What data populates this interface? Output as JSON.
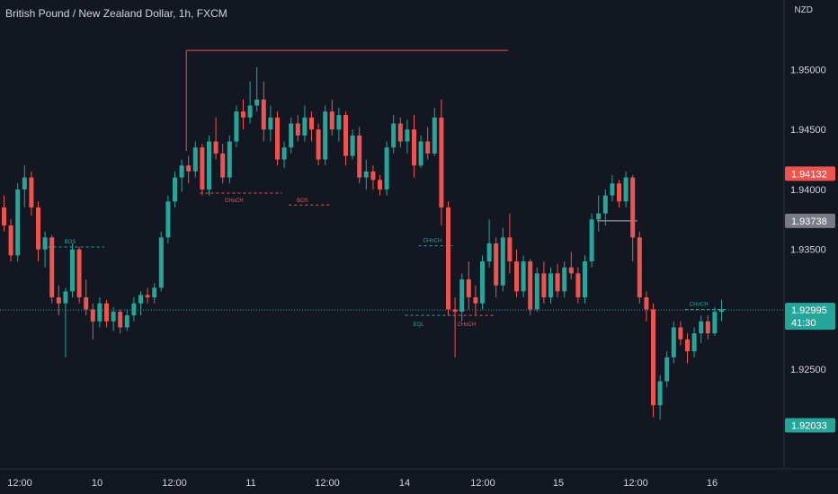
{
  "header": {
    "symbol_title": "British Pound / New Zealand Dollar, 1h, FXCM",
    "currency": "NZD"
  },
  "colors": {
    "background": "#131722",
    "up": "#26a69a",
    "down": "#ef5350",
    "axis_text": "#d1d4dc",
    "loss_zone": "#5c1f26",
    "profit_zone": "#0f3d36"
  },
  "chart_data": {
    "type": "candlestick",
    "title": "British Pound / New Zealand Dollar, 1h, FXCM",
    "y_axis": {
      "ticks": [
        "1.95000",
        "1.94500",
        "1.94000",
        "1.93500",
        "1.92500"
      ],
      "tick_values": [
        1.95,
        1.945,
        1.94,
        1.935,
        1.925
      ],
      "ylim": [
        1.9167,
        1.9558
      ]
    },
    "x_axis": {
      "ticks": [
        "12:00",
        "10",
        "12:00",
        "11",
        "12:00",
        "14",
        "12:00",
        "15",
        "12:00",
        "16"
      ]
    },
    "price_labels": [
      {
        "value": "1.94132",
        "price": 1.94132,
        "color": "#ef5350"
      },
      {
        "value": "1.93738",
        "price": 1.93738,
        "color": "#787b86"
      },
      {
        "value": "1.92995",
        "price": 1.92995,
        "color": "#26a69a",
        "countdown": "41:30"
      },
      {
        "value": "1.92033",
        "price": 1.92033,
        "color": "#26a69a"
      }
    ],
    "current_price": 1.92995,
    "annotations": [
      {
        "text": "BOS",
        "price": 1.9352,
        "color": "#26a69a"
      },
      {
        "text": "CHoCH",
        "price": 1.9397,
        "color": "#ef5350"
      },
      {
        "text": "BOS",
        "price": 1.9397,
        "color": "#ef5350"
      },
      {
        "text": "CHoCH",
        "price": 1.9353,
        "color": "#26a69a"
      },
      {
        "text": "EQL",
        "price": 1.9295,
        "color": "#26a69a"
      },
      {
        "text": "CHoCH",
        "price": 1.9295,
        "color": "#ef5350"
      },
      {
        "text": "CHoCH",
        "price": 1.93,
        "color": "#26a69a"
      }
    ],
    "resistance_level": 1.9516,
    "position": {
      "entry": 1.93738,
      "stop_loss": 1.94132,
      "take_profit": 1.92033
    },
    "candles": [
      [
        1.9385,
        1.9395,
        1.9365,
        1.937
      ],
      [
        1.937,
        1.9375,
        1.934,
        1.9345
      ],
      [
        1.9345,
        1.9405,
        1.934,
        1.94
      ],
      [
        1.94,
        1.942,
        1.9385,
        1.941
      ],
      [
        1.941,
        1.9415,
        1.9378,
        1.9385
      ],
      [
        1.9385,
        1.939,
        1.934,
        1.935
      ],
      [
        1.935,
        1.9365,
        1.9335,
        1.936
      ],
      [
        1.936,
        1.9362,
        1.9305,
        1.931
      ],
      [
        1.931,
        1.932,
        1.9295,
        1.9305
      ],
      [
        1.9305,
        1.9318,
        1.926,
        1.9315
      ],
      [
        1.9315,
        1.9355,
        1.931,
        1.935
      ],
      [
        1.935,
        1.9352,
        1.9305,
        1.931
      ],
      [
        1.931,
        1.9325,
        1.9295,
        1.93
      ],
      [
        1.93,
        1.9305,
        1.9275,
        1.929
      ],
      [
        1.929,
        1.931,
        1.9285,
        1.9305
      ],
      [
        1.9305,
        1.9308,
        1.9285,
        1.929
      ],
      [
        1.929,
        1.9302,
        1.9282,
        1.9298
      ],
      [
        1.9298,
        1.93,
        1.928,
        1.9285
      ],
      [
        1.9285,
        1.93,
        1.9282,
        1.9295
      ],
      [
        1.9295,
        1.931,
        1.929,
        1.9305
      ],
      [
        1.9305,
        1.9315,
        1.9295,
        1.9312
      ],
      [
        1.9312,
        1.9318,
        1.9305,
        1.931
      ],
      [
        1.931,
        1.9322,
        1.9305,
        1.9318
      ],
      [
        1.9318,
        1.9365,
        1.9315,
        1.936
      ],
      [
        1.936,
        1.9395,
        1.9355,
        1.939
      ],
      [
        1.939,
        1.9415,
        1.9385,
        1.941
      ],
      [
        1.941,
        1.9425,
        1.9398,
        1.942
      ],
      [
        1.942,
        1.9428,
        1.9405,
        1.9415
      ],
      [
        1.9415,
        1.944,
        1.941,
        1.9435
      ],
      [
        1.9435,
        1.9438,
        1.9395,
        1.94
      ],
      [
        1.94,
        1.9445,
        1.9395,
        1.944
      ],
      [
        1.944,
        1.946,
        1.9425,
        1.943
      ],
      [
        1.943,
        1.9438,
        1.9405,
        1.941
      ],
      [
        1.941,
        1.9445,
        1.9405,
        1.944
      ],
      [
        1.944,
        1.947,
        1.9435,
        1.9465
      ],
      [
        1.9465,
        1.9475,
        1.945,
        1.946
      ],
      [
        1.946,
        1.949,
        1.9455,
        1.947
      ],
      [
        1.947,
        1.9502,
        1.9465,
        1.9475
      ],
      [
        1.9475,
        1.949,
        1.944,
        1.945
      ],
      [
        1.945,
        1.947,
        1.944,
        1.946
      ],
      [
        1.946,
        1.9465,
        1.942,
        1.9425
      ],
      [
        1.9425,
        1.944,
        1.9418,
        1.9435
      ],
      [
        1.9435,
        1.946,
        1.943,
        1.9455
      ],
      [
        1.9455,
        1.9462,
        1.944,
        1.9445
      ],
      [
        1.9445,
        1.947,
        1.944,
        1.946
      ],
      [
        1.946,
        1.9465,
        1.944,
        1.945
      ],
      [
        1.945,
        1.9455,
        1.942,
        1.9425
      ],
      [
        1.9425,
        1.947,
        1.942,
        1.9465
      ],
      [
        1.9465,
        1.9475,
        1.9445,
        1.945
      ],
      [
        1.945,
        1.9468,
        1.944,
        1.9462
      ],
      [
        1.9462,
        1.9465,
        1.942,
        1.9428
      ],
      [
        1.9428,
        1.945,
        1.9425,
        1.9445
      ],
      [
        1.9445,
        1.9452,
        1.9405,
        1.941
      ],
      [
        1.941,
        1.9425,
        1.94,
        1.9415
      ],
      [
        1.9415,
        1.942,
        1.94,
        1.9408
      ],
      [
        1.9408,
        1.9412,
        1.9395,
        1.94
      ],
      [
        1.94,
        1.944,
        1.9395,
        1.9435
      ],
      [
        1.9435,
        1.9462,
        1.943,
        1.9455
      ],
      [
        1.9455,
        1.946,
        1.9435,
        1.944
      ],
      [
        1.944,
        1.9458,
        1.943,
        1.945
      ],
      [
        1.945,
        1.9462,
        1.941,
        1.942
      ],
      [
        1.942,
        1.9445,
        1.9418,
        1.944
      ],
      [
        1.944,
        1.9452,
        1.9425,
        1.943
      ],
      [
        1.943,
        1.9468,
        1.9428,
        1.946
      ],
      [
        1.946,
        1.9475,
        1.937,
        1.9385
      ],
      [
        1.9385,
        1.939,
        1.9295,
        1.93
      ],
      [
        1.93,
        1.931,
        1.926,
        1.9298
      ],
      [
        1.9298,
        1.933,
        1.929,
        1.9325
      ],
      [
        1.9325,
        1.934,
        1.93,
        1.931
      ],
      [
        1.931,
        1.932,
        1.9295,
        1.9305
      ],
      [
        1.9305,
        1.9345,
        1.93,
        1.934
      ],
      [
        1.934,
        1.9375,
        1.9335,
        1.9355
      ],
      [
        1.9355,
        1.936,
        1.931,
        1.932
      ],
      [
        1.932,
        1.9368,
        1.9315,
        1.936
      ],
      [
        1.936,
        1.938,
        1.933,
        1.934
      ],
      [
        1.934,
        1.935,
        1.931,
        1.9315
      ],
      [
        1.9315,
        1.9345,
        1.931,
        1.934
      ],
      [
        1.934,
        1.9342,
        1.9295,
        1.93
      ],
      [
        1.93,
        1.9335,
        1.9298,
        1.933
      ],
      [
        1.933,
        1.934,
        1.9305,
        1.931
      ],
      [
        1.931,
        1.9335,
        1.9305,
        1.933
      ],
      [
        1.933,
        1.9338,
        1.931,
        1.9315
      ],
      [
        1.9315,
        1.934,
        1.931,
        1.9335
      ],
      [
        1.9335,
        1.9348,
        1.9325,
        1.933
      ],
      [
        1.933,
        1.9335,
        1.9305,
        1.931
      ],
      [
        1.931,
        1.9345,
        1.9305,
        1.934
      ],
      [
        1.934,
        1.938,
        1.9335,
        1.9375
      ],
      [
        1.9375,
        1.9395,
        1.9365,
        1.938
      ],
      [
        1.938,
        1.94,
        1.937,
        1.9395
      ],
      [
        1.9395,
        1.9412,
        1.939,
        1.9405
      ],
      [
        1.9405,
        1.9408,
        1.9385,
        1.939
      ],
      [
        1.939,
        1.9415,
        1.9385,
        1.941
      ],
      [
        1.941,
        1.9412,
        1.934,
        1.936
      ],
      [
        1.936,
        1.9365,
        1.9305,
        1.931
      ],
      [
        1.931,
        1.9315,
        1.929,
        1.93
      ],
      [
        1.93,
        1.9305,
        1.921,
        1.922
      ],
      [
        1.922,
        1.9245,
        1.9208,
        1.924
      ],
      [
        1.924,
        1.9265,
        1.9235,
        1.926
      ],
      [
        1.926,
        1.929,
        1.9255,
        1.9285
      ],
      [
        1.9285,
        1.929,
        1.927,
        1.9275
      ],
      [
        1.9275,
        1.928,
        1.9255,
        1.9265
      ],
      [
        1.9265,
        1.9285,
        1.926,
        1.928
      ],
      [
        1.928,
        1.9295,
        1.9272,
        1.929
      ],
      [
        1.929,
        1.9295,
        1.9275,
        1.928
      ],
      [
        1.928,
        1.9302,
        1.9278,
        1.9298
      ],
      [
        1.9298,
        1.9308,
        1.929,
        1.93
      ]
    ]
  }
}
